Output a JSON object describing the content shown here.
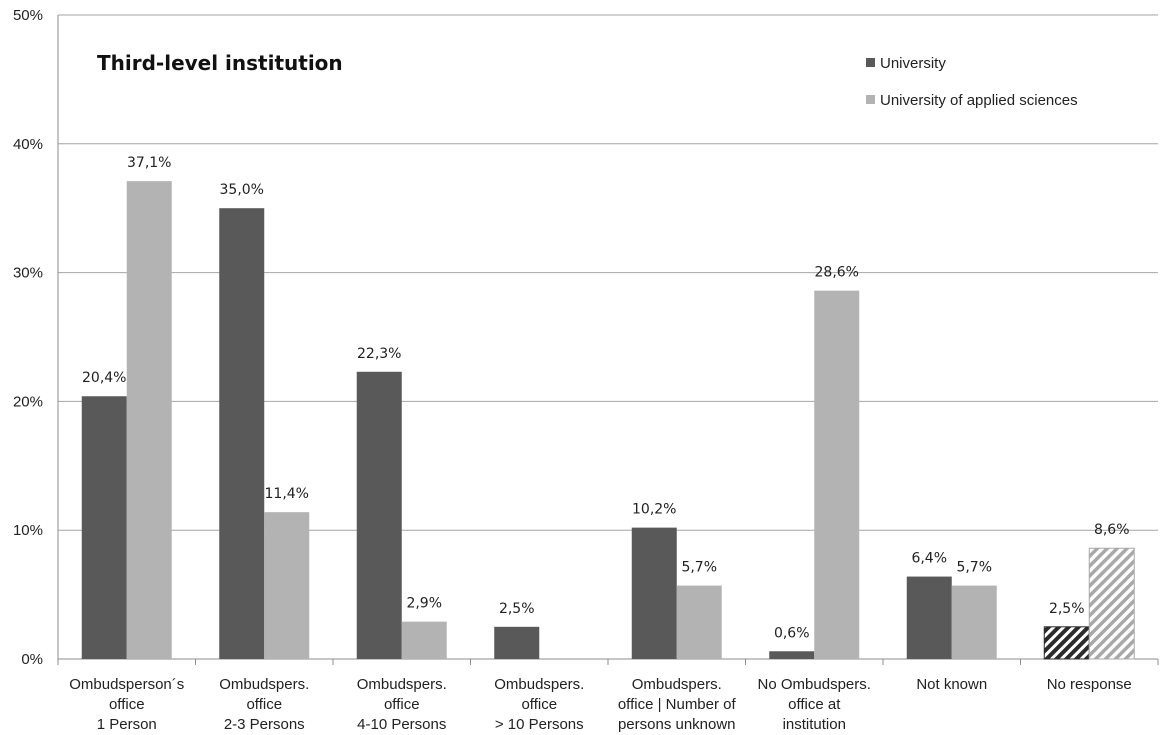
{
  "chart_data": {
    "type": "bar",
    "title": "Third-level institution",
    "ylim": [
      0,
      50
    ],
    "yticks": [
      "0%",
      "10%",
      "20%",
      "30%",
      "40%",
      "50%"
    ],
    "grid": true,
    "legend_position": "top-right",
    "categories": [
      [
        "Ombudsperson´s",
        "office",
        "1 Person"
      ],
      [
        "Ombudspers.",
        "office",
        "2-3 Persons"
      ],
      [
        "Ombudspers.",
        "office",
        "4-10 Persons"
      ],
      [
        "Ombudspers.",
        "office",
        "> 10 Persons"
      ],
      [
        "Ombudspers.",
        "office | Number of",
        "persons unknown"
      ],
      [
        "No Ombudspers.",
        "office at",
        "institution"
      ],
      [
        "Not known"
      ],
      [
        "No response"
      ]
    ],
    "series": [
      {
        "name": "University",
        "color": "#595959",
        "values": [
          20.4,
          35.0,
          22.3,
          2.5,
          10.2,
          0.6,
          6.4,
          2.5
        ],
        "labels": [
          "20,4%",
          "35,0%",
          "22,3%",
          "2,5%",
          "10,2%",
          "0,6%",
          "6,4%",
          "2,5%"
        ]
      },
      {
        "name": "University of applied sciences",
        "color": "#b3b3b3",
        "values": [
          37.1,
          11.4,
          2.9,
          0,
          5.7,
          28.6,
          5.7,
          8.6
        ],
        "labels": [
          "37,1%",
          "11,4%",
          "2,9%",
          "",
          "5,7%",
          "28,6%",
          "5,7%",
          "8,6%"
        ]
      }
    ],
    "hatched_category": "No response"
  }
}
